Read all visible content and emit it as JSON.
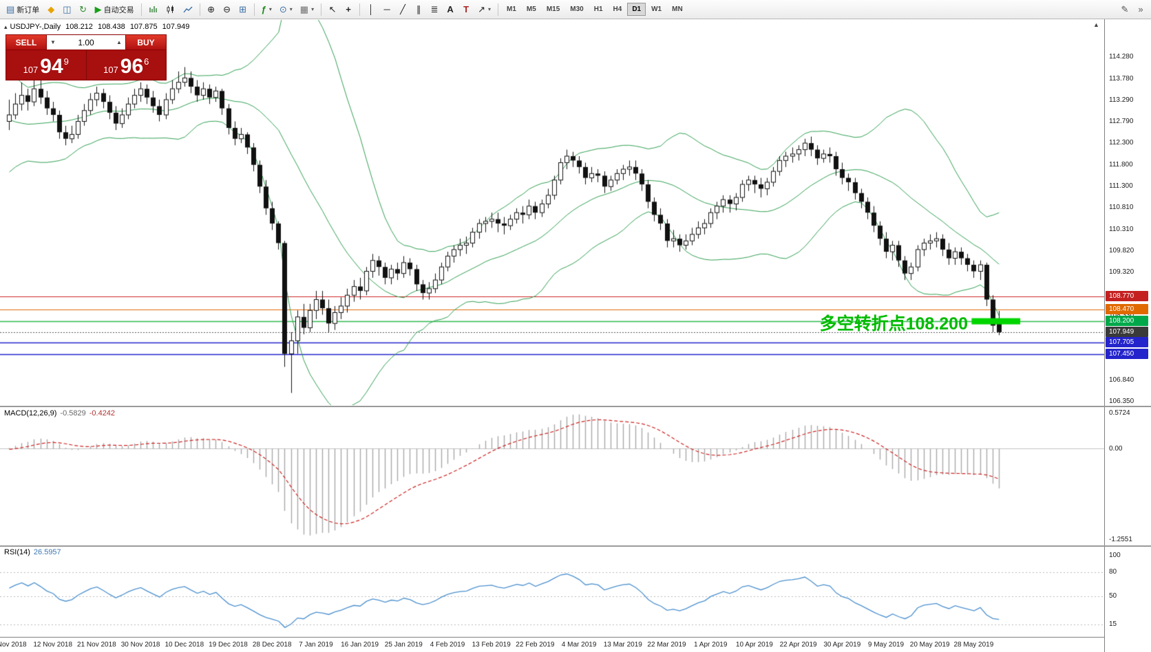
{
  "header": {
    "collapse_marker": "▴",
    "symbol_period": "USDJPY-,Daily",
    "open": "108.212",
    "high": "108.438",
    "low": "107.875",
    "close": "107.949"
  },
  "misc": {
    "scroll_marker": "▲"
  },
  "toolbar": {
    "new_order_label": "新订单",
    "autotrading_label": "自动交易",
    "timeframes": [
      "M1",
      "M5",
      "M15",
      "M30",
      "H1",
      "H4",
      "D1",
      "W1",
      "MN"
    ],
    "active_timeframe": "D1",
    "icons": [
      {
        "name": "new-order-icon",
        "glyph": "▤",
        "color": "#3a6ea5"
      },
      {
        "name": "metaeditor-icon",
        "glyph": "◆",
        "color": "#e8a300"
      },
      {
        "name": "new-chart-icon",
        "glyph": "◫",
        "color": "#3a6ea5"
      },
      {
        "name": "refresh-icon",
        "glyph": "↻",
        "color": "#2e8b2e"
      },
      {
        "name": "autotrading-icon",
        "glyph": "▶",
        "color": "#18a018"
      },
      {
        "name": "bar-chart-icon",
        "glyph": "svg"
      },
      {
        "name": "candlestick-icon",
        "glyph": "svg"
      },
      {
        "name": "line-chart-icon",
        "glyph": "svg"
      },
      {
        "name": "zoom-in-icon",
        "glyph": "⊕",
        "color": "#333333"
      },
      {
        "name": "zoom-out-icon",
        "glyph": "⊖",
        "color": "#333333"
      },
      {
        "name": "tile-windows-icon",
        "glyph": "⊞",
        "color": "#3a6ea5"
      },
      {
        "name": "indicators-icon",
        "glyph": "ƒ",
        "color": "#1a8a1a"
      },
      {
        "name": "periods-icon",
        "glyph": "⊙",
        "color": "#3a6ea5"
      },
      {
        "name": "templates-icon",
        "glyph": "▦",
        "color": "#707070"
      },
      {
        "name": "cursor-icon",
        "glyph": "↖",
        "color": "#333333"
      },
      {
        "name": "crosshair-icon",
        "glyph": "+",
        "color": "#333333"
      },
      {
        "name": "vline-icon",
        "glyph": "│",
        "color": "#333333"
      },
      {
        "name": "hline-icon",
        "glyph": "─",
        "color": "#333333"
      },
      {
        "name": "trendline-icon",
        "glyph": "╱",
        "color": "#333333"
      },
      {
        "name": "channel-icon",
        "glyph": "∥",
        "color": "#333333"
      },
      {
        "name": "fibonacci-icon",
        "glyph": "≣",
        "color": "#333333"
      },
      {
        "name": "text-icon",
        "glyph": "A",
        "color": "#333333"
      },
      {
        "name": "label-icon",
        "glyph": "T",
        "color": "#aa2222"
      },
      {
        "name": "arrows-icon",
        "glyph": "↗",
        "color": "#333333"
      },
      {
        "name": "pencil-icon",
        "glyph": "✎",
        "color": "#555555"
      },
      {
        "name": "more-icon",
        "glyph": "»",
        "color": "#555555"
      }
    ]
  },
  "trade_panel": {
    "sell_label": "SELL",
    "buy_label": "BUY",
    "volume": "1.00",
    "spinner_down": "▼",
    "spinner_up": "▲",
    "sell_price": {
      "small": "107",
      "big": "94",
      "sup": "9"
    },
    "buy_price": {
      "small": "107",
      "big": "96",
      "sup": "6"
    }
  },
  "macd_panel": {
    "label": "MACD(12,26,9)",
    "value_main": "-0.5829",
    "value_signal": "-0.4242",
    "scale_top": "0.5724",
    "scale_zero": "0.00",
    "scale_bottom": "-1.2551"
  },
  "rsi_panel": {
    "label": "RSI(14)",
    "value": "26.5957",
    "scale": [
      "100",
      "80",
      "50",
      "15"
    ],
    "levels": [
      80,
      50,
      15
    ]
  },
  "chart_data": {
    "type": "candlestick",
    "symbol": "USDJPY-",
    "period": "Daily",
    "annotation": {
      "text": "多空转折点108.200",
      "color": "#00bb00"
    },
    "y_axis": {
      "price_top": 114.28,
      "price_bottom": 106.35,
      "ticks": [
        "114.280",
        "113.780",
        "113.290",
        "112.790",
        "112.300",
        "111.800",
        "111.300",
        "110.810",
        "110.310",
        "109.820",
        "109.320",
        "108.330",
        "106.840",
        "106.350"
      ]
    },
    "x_axis": {
      "bars_per_label": 7,
      "labels": [
        "2 Nov 2018",
        "12 Nov 2018",
        "21 Nov 2018",
        "30 Nov 2018",
        "10 Dec 2018",
        "19 Dec 2018",
        "28 Dec 2018",
        "7 Jan 2019",
        "16 Jan 2019",
        "25 Jan 2019",
        "4 Feb 2019",
        "13 Feb 2019",
        "22 Feb 2019",
        "4 Mar 2019",
        "13 Mar 2019",
        "22 Mar 2019",
        "1 Apr 2019",
        "10 Apr 2019",
        "22 Apr 2019",
        "30 Apr 2019",
        "9 May 2019",
        "20 May 2019",
        "28 May 2019"
      ]
    },
    "hlines": [
      {
        "price": 108.77,
        "color": "#cc2222",
        "width": 1
      },
      {
        "price": 108.47,
        "color": "#e06a00",
        "width": 1
      },
      {
        "price": 108.2,
        "color": "#2db84d",
        "width": 1.5
      },
      {
        "price": 107.705,
        "color": "#2222cc",
        "width": 1.5
      },
      {
        "price": 107.45,
        "color": "#2222cc",
        "width": 1.5
      }
    ],
    "current_price": {
      "price": 107.949,
      "color": "#555555"
    },
    "badges": [
      {
        "label": "108.770",
        "price": 108.77,
        "color": "#c42020"
      },
      {
        "label": "108.470",
        "price": 108.47,
        "color": "#e06a00"
      },
      {
        "label": "108.200",
        "price": 108.2,
        "color": "#00a84a"
      },
      {
        "label": "107.949",
        "price": 107.949,
        "color": "#3a3a3a"
      },
      {
        "label": "107.705",
        "price": 107.705,
        "color": "#2424cc"
      },
      {
        "label": "107.450",
        "price": 107.45,
        "color": "#2424cc"
      }
    ],
    "highlight_bar": {
      "price": 108.2,
      "from_bar": 154,
      "to_bar": 161,
      "color": "#00d500"
    },
    "indicators": {
      "bollinger": {
        "period": 20,
        "deviation": 2,
        "color": "#2f9e50"
      },
      "macd": {
        "fast": 12,
        "slow": 26,
        "signal": 9,
        "hist_color": "#a8a8a8",
        "signal_color": "#cc2222"
      },
      "rsi": {
        "period": 14,
        "color": "#4a8fce"
      }
    },
    "colors": {
      "bull": "#ffffff",
      "bear": "#111111",
      "outline": "#111111"
    },
    "warmup_closes": [
      111.95,
      112.15,
      112.45,
      112.75,
      113.05,
      113.3,
      113.55,
      113.85,
      114.1,
      114.3,
      114.45,
      114.25,
      114.0,
      113.7,
      113.4,
      113.1,
      112.85,
      112.6,
      112.35,
      112.15,
      111.95,
      112.1,
      112.3,
      112.5,
      112.4,
      112.6,
      112.8,
      112.9,
      113.0,
      112.9
    ],
    "ohlc": [
      [
        112.8,
        113.3,
        112.6,
        112.95
      ],
      [
        112.95,
        113.45,
        112.85,
        113.2
      ],
      [
        113.2,
        113.7,
        113.05,
        113.4
      ],
      [
        113.4,
        113.55,
        113.05,
        113.25
      ],
      [
        113.25,
        113.9,
        113.15,
        113.55
      ],
      [
        113.55,
        113.75,
        113.2,
        113.35
      ],
      [
        113.35,
        113.5,
        112.95,
        113.1
      ],
      [
        113.1,
        113.25,
        112.8,
        112.95
      ],
      [
        112.95,
        113.05,
        112.4,
        112.55
      ],
      [
        112.55,
        112.7,
        112.25,
        112.4
      ],
      [
        112.4,
        112.7,
        112.3,
        112.5
      ],
      [
        112.5,
        112.95,
        112.4,
        112.8
      ],
      [
        112.8,
        113.2,
        112.7,
        113.05
      ],
      [
        113.05,
        113.45,
        112.95,
        113.3
      ],
      [
        113.3,
        113.6,
        113.15,
        113.45
      ],
      [
        113.45,
        113.55,
        113.1,
        113.25
      ],
      [
        113.25,
        113.4,
        112.85,
        113.0
      ],
      [
        113.0,
        113.15,
        112.6,
        112.75
      ],
      [
        112.75,
        113.1,
        112.65,
        112.95
      ],
      [
        112.95,
        113.35,
        112.85,
        113.2
      ],
      [
        113.2,
        113.55,
        113.1,
        113.4
      ],
      [
        113.4,
        113.7,
        113.25,
        113.55
      ],
      [
        113.55,
        113.65,
        113.2,
        113.35
      ],
      [
        113.35,
        113.5,
        113.0,
        113.15
      ],
      [
        113.15,
        113.3,
        112.8,
        112.95
      ],
      [
        112.95,
        113.45,
        112.85,
        113.3
      ],
      [
        113.3,
        113.75,
        113.2,
        113.55
      ],
      [
        113.55,
        113.95,
        113.45,
        113.7
      ],
      [
        113.7,
        114.05,
        113.6,
        113.8
      ],
      [
        113.8,
        113.95,
        113.45,
        113.6
      ],
      [
        113.6,
        113.75,
        113.25,
        113.4
      ],
      [
        113.4,
        113.7,
        113.3,
        113.55
      ],
      [
        113.55,
        113.65,
        113.2,
        113.35
      ],
      [
        113.35,
        113.6,
        113.25,
        113.5
      ],
      [
        113.5,
        113.55,
        112.95,
        113.1
      ],
      [
        113.1,
        113.2,
        112.5,
        112.65
      ],
      [
        112.65,
        112.8,
        112.25,
        112.4
      ],
      [
        112.4,
        112.65,
        112.3,
        112.5
      ],
      [
        112.5,
        112.55,
        112.05,
        112.2
      ],
      [
        112.2,
        112.3,
        111.65,
        111.8
      ],
      [
        111.8,
        111.9,
        111.15,
        111.3
      ],
      [
        111.3,
        111.45,
        110.65,
        110.8
      ],
      [
        110.8,
        110.95,
        110.3,
        110.45
      ],
      [
        110.45,
        110.5,
        109.85,
        110.0
      ],
      [
        110.0,
        110.05,
        107.15,
        107.45
      ],
      [
        107.45,
        107.95,
        106.55,
        107.75
      ],
      [
        107.75,
        108.45,
        107.45,
        108.3
      ],
      [
        108.3,
        108.6,
        107.9,
        108.05
      ],
      [
        108.05,
        108.6,
        107.95,
        108.45
      ],
      [
        108.45,
        108.9,
        108.25,
        108.7
      ],
      [
        108.7,
        108.9,
        108.35,
        108.5
      ],
      [
        108.5,
        108.7,
        107.95,
        108.15
      ],
      [
        108.15,
        108.55,
        108.0,
        108.4
      ],
      [
        108.4,
        108.75,
        108.25,
        108.55
      ],
      [
        108.55,
        108.95,
        108.4,
        108.8
      ],
      [
        108.8,
        109.15,
        108.65,
        109.0
      ],
      [
        109.0,
        109.2,
        108.7,
        108.9
      ],
      [
        108.9,
        109.45,
        108.8,
        109.35
      ],
      [
        109.35,
        109.75,
        109.2,
        109.6
      ],
      [
        109.6,
        109.7,
        109.25,
        109.45
      ],
      [
        109.45,
        109.55,
        109.05,
        109.2
      ],
      [
        109.2,
        109.5,
        109.05,
        109.4
      ],
      [
        109.4,
        109.55,
        109.15,
        109.3
      ],
      [
        109.3,
        109.7,
        109.2,
        109.55
      ],
      [
        109.55,
        109.65,
        109.25,
        109.4
      ],
      [
        109.4,
        109.5,
        108.9,
        109.05
      ],
      [
        109.05,
        109.15,
        108.7,
        108.85
      ],
      [
        108.85,
        109.1,
        108.7,
        108.95
      ],
      [
        108.95,
        109.3,
        108.85,
        109.15
      ],
      [
        109.15,
        109.55,
        109.05,
        109.45
      ],
      [
        109.45,
        109.8,
        109.35,
        109.7
      ],
      [
        109.7,
        109.95,
        109.55,
        109.85
      ],
      [
        109.85,
        110.1,
        109.7,
        109.95
      ],
      [
        109.95,
        110.15,
        109.75,
        110.0
      ],
      [
        110.0,
        110.35,
        109.9,
        110.25
      ],
      [
        110.25,
        110.55,
        110.1,
        110.45
      ],
      [
        110.45,
        110.6,
        110.25,
        110.5
      ],
      [
        110.5,
        110.7,
        110.35,
        110.55
      ],
      [
        110.55,
        110.7,
        110.25,
        110.45
      ],
      [
        110.45,
        110.6,
        110.2,
        110.4
      ],
      [
        110.4,
        110.65,
        110.3,
        110.55
      ],
      [
        110.55,
        110.8,
        110.45,
        110.7
      ],
      [
        110.7,
        110.85,
        110.45,
        110.65
      ],
      [
        110.65,
        111.0,
        110.55,
        110.85
      ],
      [
        110.85,
        110.95,
        110.55,
        110.7
      ],
      [
        110.7,
        111.0,
        110.6,
        110.9
      ],
      [
        110.9,
        111.25,
        110.8,
        111.1
      ],
      [
        111.1,
        111.55,
        111.0,
        111.45
      ],
      [
        111.45,
        111.95,
        111.35,
        111.85
      ],
      [
        111.85,
        112.15,
        111.7,
        112.0
      ],
      [
        112.0,
        112.1,
        111.75,
        111.9
      ],
      [
        111.9,
        112.0,
        111.6,
        111.75
      ],
      [
        111.75,
        111.85,
        111.35,
        111.5
      ],
      [
        111.5,
        111.75,
        111.4,
        111.6
      ],
      [
        111.6,
        111.7,
        111.4,
        111.55
      ],
      [
        111.55,
        111.65,
        111.15,
        111.3
      ],
      [
        111.3,
        111.55,
        111.2,
        111.45
      ],
      [
        111.45,
        111.7,
        111.35,
        111.6
      ],
      [
        111.6,
        111.8,
        111.45,
        111.7
      ],
      [
        111.7,
        111.9,
        111.55,
        111.75
      ],
      [
        111.75,
        111.9,
        111.45,
        111.6
      ],
      [
        111.6,
        111.7,
        111.2,
        111.35
      ],
      [
        111.35,
        111.45,
        110.8,
        110.95
      ],
      [
        110.95,
        111.05,
        110.5,
        110.65
      ],
      [
        110.65,
        110.8,
        110.3,
        110.45
      ],
      [
        110.45,
        110.55,
        109.9,
        110.05
      ],
      [
        110.05,
        110.3,
        109.9,
        110.1
      ],
      [
        110.1,
        110.2,
        109.8,
        109.95
      ],
      [
        109.95,
        110.2,
        109.85,
        110.05
      ],
      [
        110.05,
        110.35,
        109.95,
        110.2
      ],
      [
        110.2,
        110.5,
        110.1,
        110.35
      ],
      [
        110.35,
        110.55,
        110.2,
        110.45
      ],
      [
        110.45,
        110.8,
        110.35,
        110.7
      ],
      [
        110.7,
        110.95,
        110.55,
        110.85
      ],
      [
        110.85,
        111.1,
        110.7,
        111.0
      ],
      [
        111.0,
        111.1,
        110.7,
        110.9
      ],
      [
        110.9,
        111.15,
        110.75,
        111.05
      ],
      [
        111.05,
        111.45,
        110.95,
        111.35
      ],
      [
        111.35,
        111.55,
        111.2,
        111.45
      ],
      [
        111.45,
        111.55,
        111.15,
        111.35
      ],
      [
        111.35,
        111.5,
        111.05,
        111.25
      ],
      [
        111.25,
        111.5,
        111.1,
        111.4
      ],
      [
        111.4,
        111.75,
        111.3,
        111.65
      ],
      [
        111.65,
        112.0,
        111.55,
        111.9
      ],
      [
        111.9,
        112.1,
        111.75,
        112.0
      ],
      [
        112.0,
        112.2,
        111.85,
        112.05
      ],
      [
        112.05,
        112.25,
        111.9,
        112.15
      ],
      [
        112.15,
        112.4,
        112.0,
        112.3
      ],
      [
        112.3,
        112.45,
        112.0,
        112.15
      ],
      [
        112.15,
        112.25,
        111.8,
        111.95
      ],
      [
        111.95,
        112.15,
        111.85,
        112.05
      ],
      [
        112.05,
        112.2,
        111.85,
        112.0
      ],
      [
        112.0,
        112.1,
        111.55,
        111.7
      ],
      [
        111.7,
        111.85,
        111.35,
        111.5
      ],
      [
        111.5,
        111.6,
        111.2,
        111.4
      ],
      [
        111.4,
        111.5,
        111.0,
        111.15
      ],
      [
        111.15,
        111.25,
        110.8,
        110.95
      ],
      [
        110.95,
        111.05,
        110.55,
        110.7
      ],
      [
        110.7,
        110.85,
        110.25,
        110.4
      ],
      [
        110.4,
        110.5,
        109.95,
        110.1
      ],
      [
        110.1,
        110.25,
        109.65,
        109.8
      ],
      [
        109.8,
        110.05,
        109.6,
        109.95
      ],
      [
        109.95,
        110.05,
        109.45,
        109.6
      ],
      [
        109.6,
        109.7,
        109.15,
        109.3
      ],
      [
        109.3,
        109.55,
        109.15,
        109.45
      ],
      [
        109.45,
        109.95,
        109.35,
        109.85
      ],
      [
        109.85,
        110.1,
        109.7,
        110.0
      ],
      [
        110.0,
        110.2,
        109.85,
        110.05
      ],
      [
        110.05,
        110.25,
        109.9,
        110.1
      ],
      [
        110.1,
        110.2,
        109.7,
        109.85
      ],
      [
        109.85,
        110.0,
        109.5,
        109.65
      ],
      [
        109.65,
        109.9,
        109.5,
        109.8
      ],
      [
        109.8,
        109.9,
        109.5,
        109.65
      ],
      [
        109.65,
        109.75,
        109.35,
        109.5
      ],
      [
        109.5,
        109.6,
        109.2,
        109.35
      ],
      [
        109.35,
        109.6,
        109.15,
        109.5
      ],
      [
        109.5,
        109.55,
        108.55,
        108.7
      ],
      [
        108.7,
        108.8,
        107.95,
        108.1
      ],
      [
        108.21,
        108.44,
        107.88,
        107.95
      ]
    ]
  }
}
